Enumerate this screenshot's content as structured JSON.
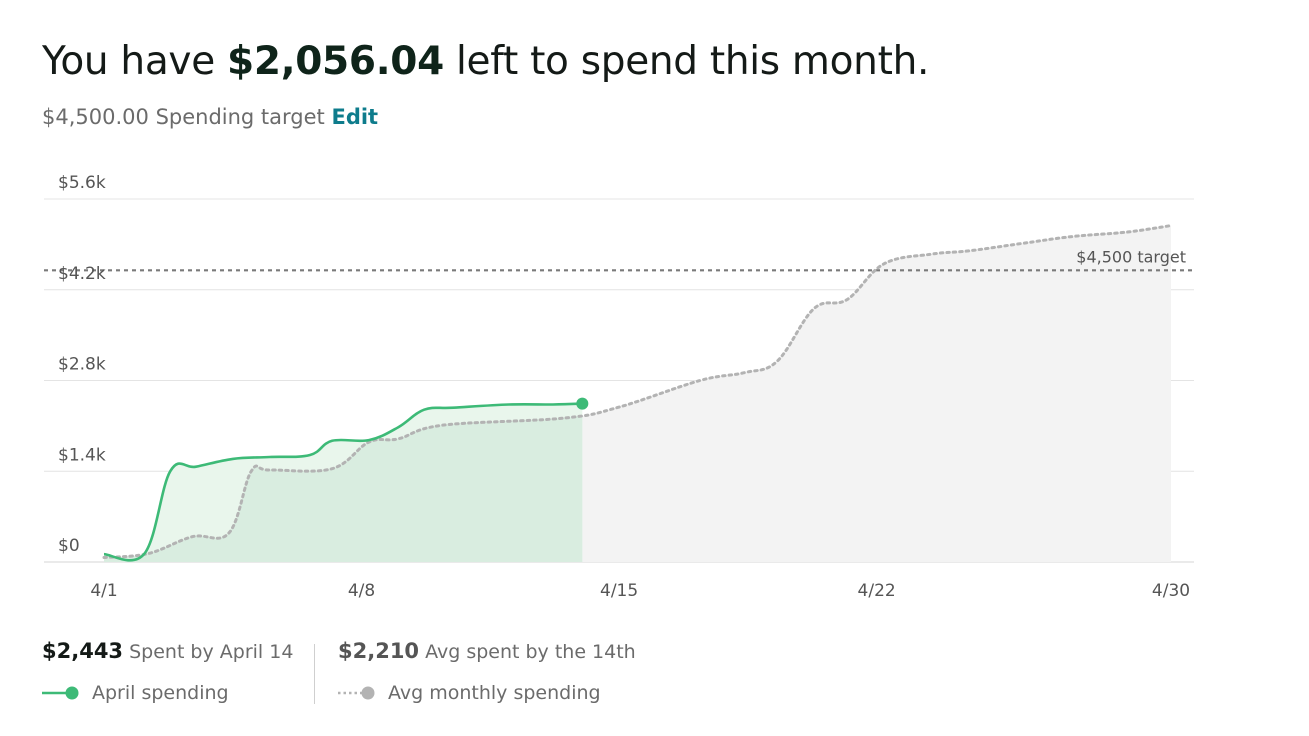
{
  "header": {
    "prefix": "You have ",
    "amount": "$2,056.04",
    "suffix": " left to spend this month."
  },
  "target": {
    "amount": "$4,500.00",
    "label": " Spending target ",
    "edit_label": "Edit"
  },
  "summary": {
    "spent_amount": "$2,443",
    "spent_label": " Spent by April 14",
    "avg_amount": "$2,210",
    "avg_label": " Avg spent by the 14th"
  },
  "legend": {
    "april_label": "April spending",
    "avg_label": "Avg monthly spending"
  },
  "colors": {
    "april": "#3dba77",
    "april_fill": "#d9ede0",
    "april_fill_light": "#e9f6ec",
    "avg": "#b3b3b3",
    "avg_fill": "#f3f3f3",
    "grid": "#e4e4e4",
    "target_line": "#7a7a7a"
  },
  "chart_data": {
    "type": "line",
    "x_ticks": [
      {
        "label": "4/1",
        "day": 1
      },
      {
        "label": "4/8",
        "day": 8
      },
      {
        "label": "4/15",
        "day": 15
      },
      {
        "label": "4/22",
        "day": 22
      },
      {
        "label": "4/30",
        "day": 30
      }
    ],
    "y_ticks": [
      {
        "label": "$0",
        "value": 0
      },
      {
        "label": "$1.4k",
        "value": 1400
      },
      {
        "label": "$2.8k",
        "value": 2800
      },
      {
        "label": "$4.2k",
        "value": 4200
      },
      {
        "label": "$5.6k",
        "value": 5600
      }
    ],
    "xlim": [
      1,
      30
    ],
    "ylim": [
      0,
      5600
    ],
    "target": {
      "value": 4500,
      "label": "$4,500 target"
    },
    "series": [
      {
        "name": "April spending",
        "style": "solid",
        "end_marker": true,
        "points": [
          [
            1,
            120
          ],
          [
            2.1,
            130
          ],
          [
            2.8,
            1400
          ],
          [
            3.5,
            1470
          ],
          [
            4.5,
            1590
          ],
          [
            5.5,
            1620
          ],
          [
            6.6,
            1650
          ],
          [
            7.2,
            1870
          ],
          [
            8.2,
            1880
          ],
          [
            9.0,
            2080
          ],
          [
            9.7,
            2350
          ],
          [
            10.5,
            2380
          ],
          [
            12.0,
            2430
          ],
          [
            13.2,
            2430
          ],
          [
            14.0,
            2443
          ]
        ]
      },
      {
        "name": "Avg monthly spending",
        "style": "dotted",
        "points": [
          [
            1,
            70
          ],
          [
            2.2,
            130
          ],
          [
            3.4,
            390
          ],
          [
            4.4,
            450
          ],
          [
            5.0,
            1400
          ],
          [
            5.5,
            1420
          ],
          [
            7.2,
            1440
          ],
          [
            8.2,
            1850
          ],
          [
            9.0,
            1900
          ],
          [
            10.2,
            2110
          ],
          [
            13.5,
            2220
          ],
          [
            15.0,
            2390
          ],
          [
            17.2,
            2800
          ],
          [
            18.4,
            2920
          ],
          [
            19.3,
            3100
          ],
          [
            20.3,
            3910
          ],
          [
            21.2,
            4050
          ],
          [
            22.2,
            4600
          ],
          [
            23.5,
            4750
          ],
          [
            24.5,
            4800
          ],
          [
            25.9,
            4910
          ],
          [
            27.3,
            5020
          ],
          [
            28.8,
            5090
          ],
          [
            30.0,
            5190
          ]
        ]
      }
    ]
  }
}
